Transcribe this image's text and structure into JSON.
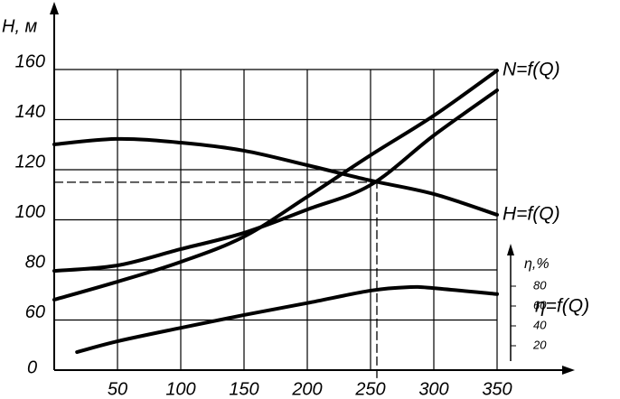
{
  "chart_data": {
    "type": "line",
    "y_axis_label": "H, м",
    "y2_axis_label": "η,%",
    "origin_label": "0",
    "xlim": [
      0,
      350
    ],
    "xticks": [
      50,
      100,
      150,
      200,
      250,
      300,
      350
    ],
    "ylim": [
      40,
      160
    ],
    "yticks": [
      60,
      80,
      100,
      120,
      140,
      160
    ],
    "y2lim": [
      0,
      100
    ],
    "y2ticks": [
      20,
      40,
      60,
      80
    ],
    "grid": true,
    "series": [
      {
        "name": "H=f(Q)",
        "color": "#000000",
        "x": [
          0,
          50,
          100,
          150,
          200,
          250,
          300,
          350
        ],
        "values": [
          130.1,
          132.3,
          130.8,
          127.6,
          121.8,
          115.7,
          110.3,
          102
        ]
      },
      {
        "name": "N=f(Q)",
        "color": "#000000",
        "x": [
          0,
          50,
          100,
          150,
          200,
          250,
          300,
          350
        ],
        "values": [
          68.1,
          75.3,
          83.2,
          93.3,
          109.2,
          125.8,
          141.6,
          159.6
        ]
      },
      {
        "name": null,
        "color": "#000000",
        "x": [
          0,
          50,
          100,
          150,
          200,
          250,
          300,
          350
        ],
        "values": [
          79.6,
          81.8,
          88.3,
          94.8,
          104.1,
          113.9,
          133.7,
          151.7
        ]
      },
      {
        "name": "η=f(Q)",
        "color": "#000000",
        "axis": "y2",
        "x": [
          18,
          50,
          100,
          150,
          200,
          250,
          280,
          300,
          350
        ],
        "values": [
          13.6,
          24.5,
          38,
          51,
          63,
          75.5,
          79,
          78,
          72
        ]
      }
    ],
    "operating_point": {
      "x": 255,
      "y": 115
    }
  }
}
